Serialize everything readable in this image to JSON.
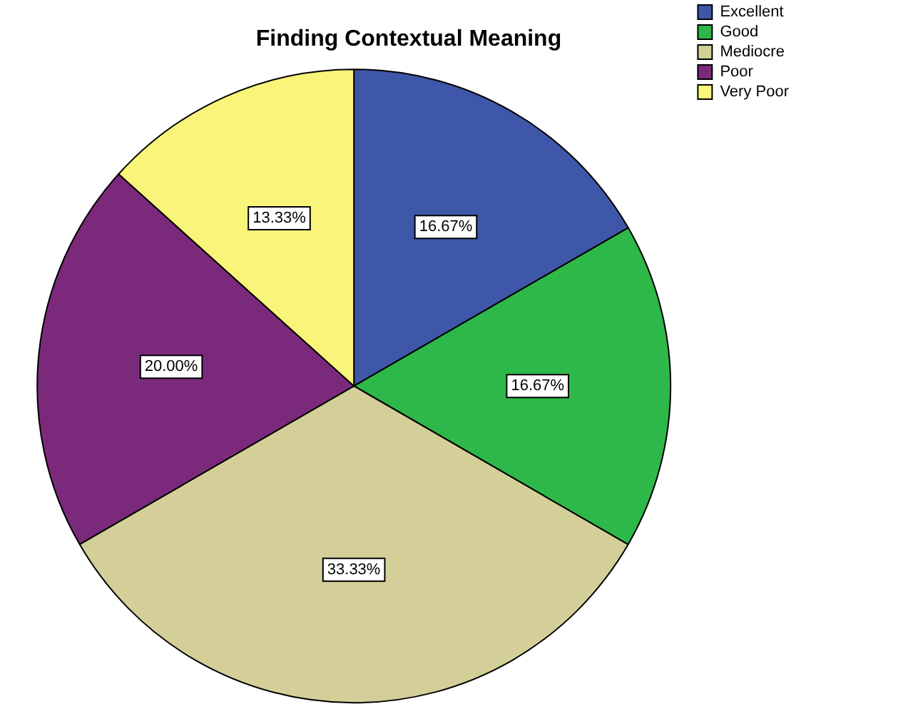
{
  "chart_data": {
    "type": "pie",
    "title": "Finding Contextual Meaning",
    "categories": [
      "Excellent",
      "Good",
      "Mediocre",
      "Poor",
      "Very Poor"
    ],
    "values": [
      16.67,
      16.67,
      33.33,
      20.0,
      13.33
    ],
    "colors": [
      "#3f57a8",
      "#2eb84a",
      "#d4cf98",
      "#7b2a7b",
      "#f8f57a"
    ],
    "value_labels": [
      "16.67%",
      "16.67%",
      "33.33%",
      "20.00%",
      "13.33%"
    ],
    "legend": "top right"
  }
}
